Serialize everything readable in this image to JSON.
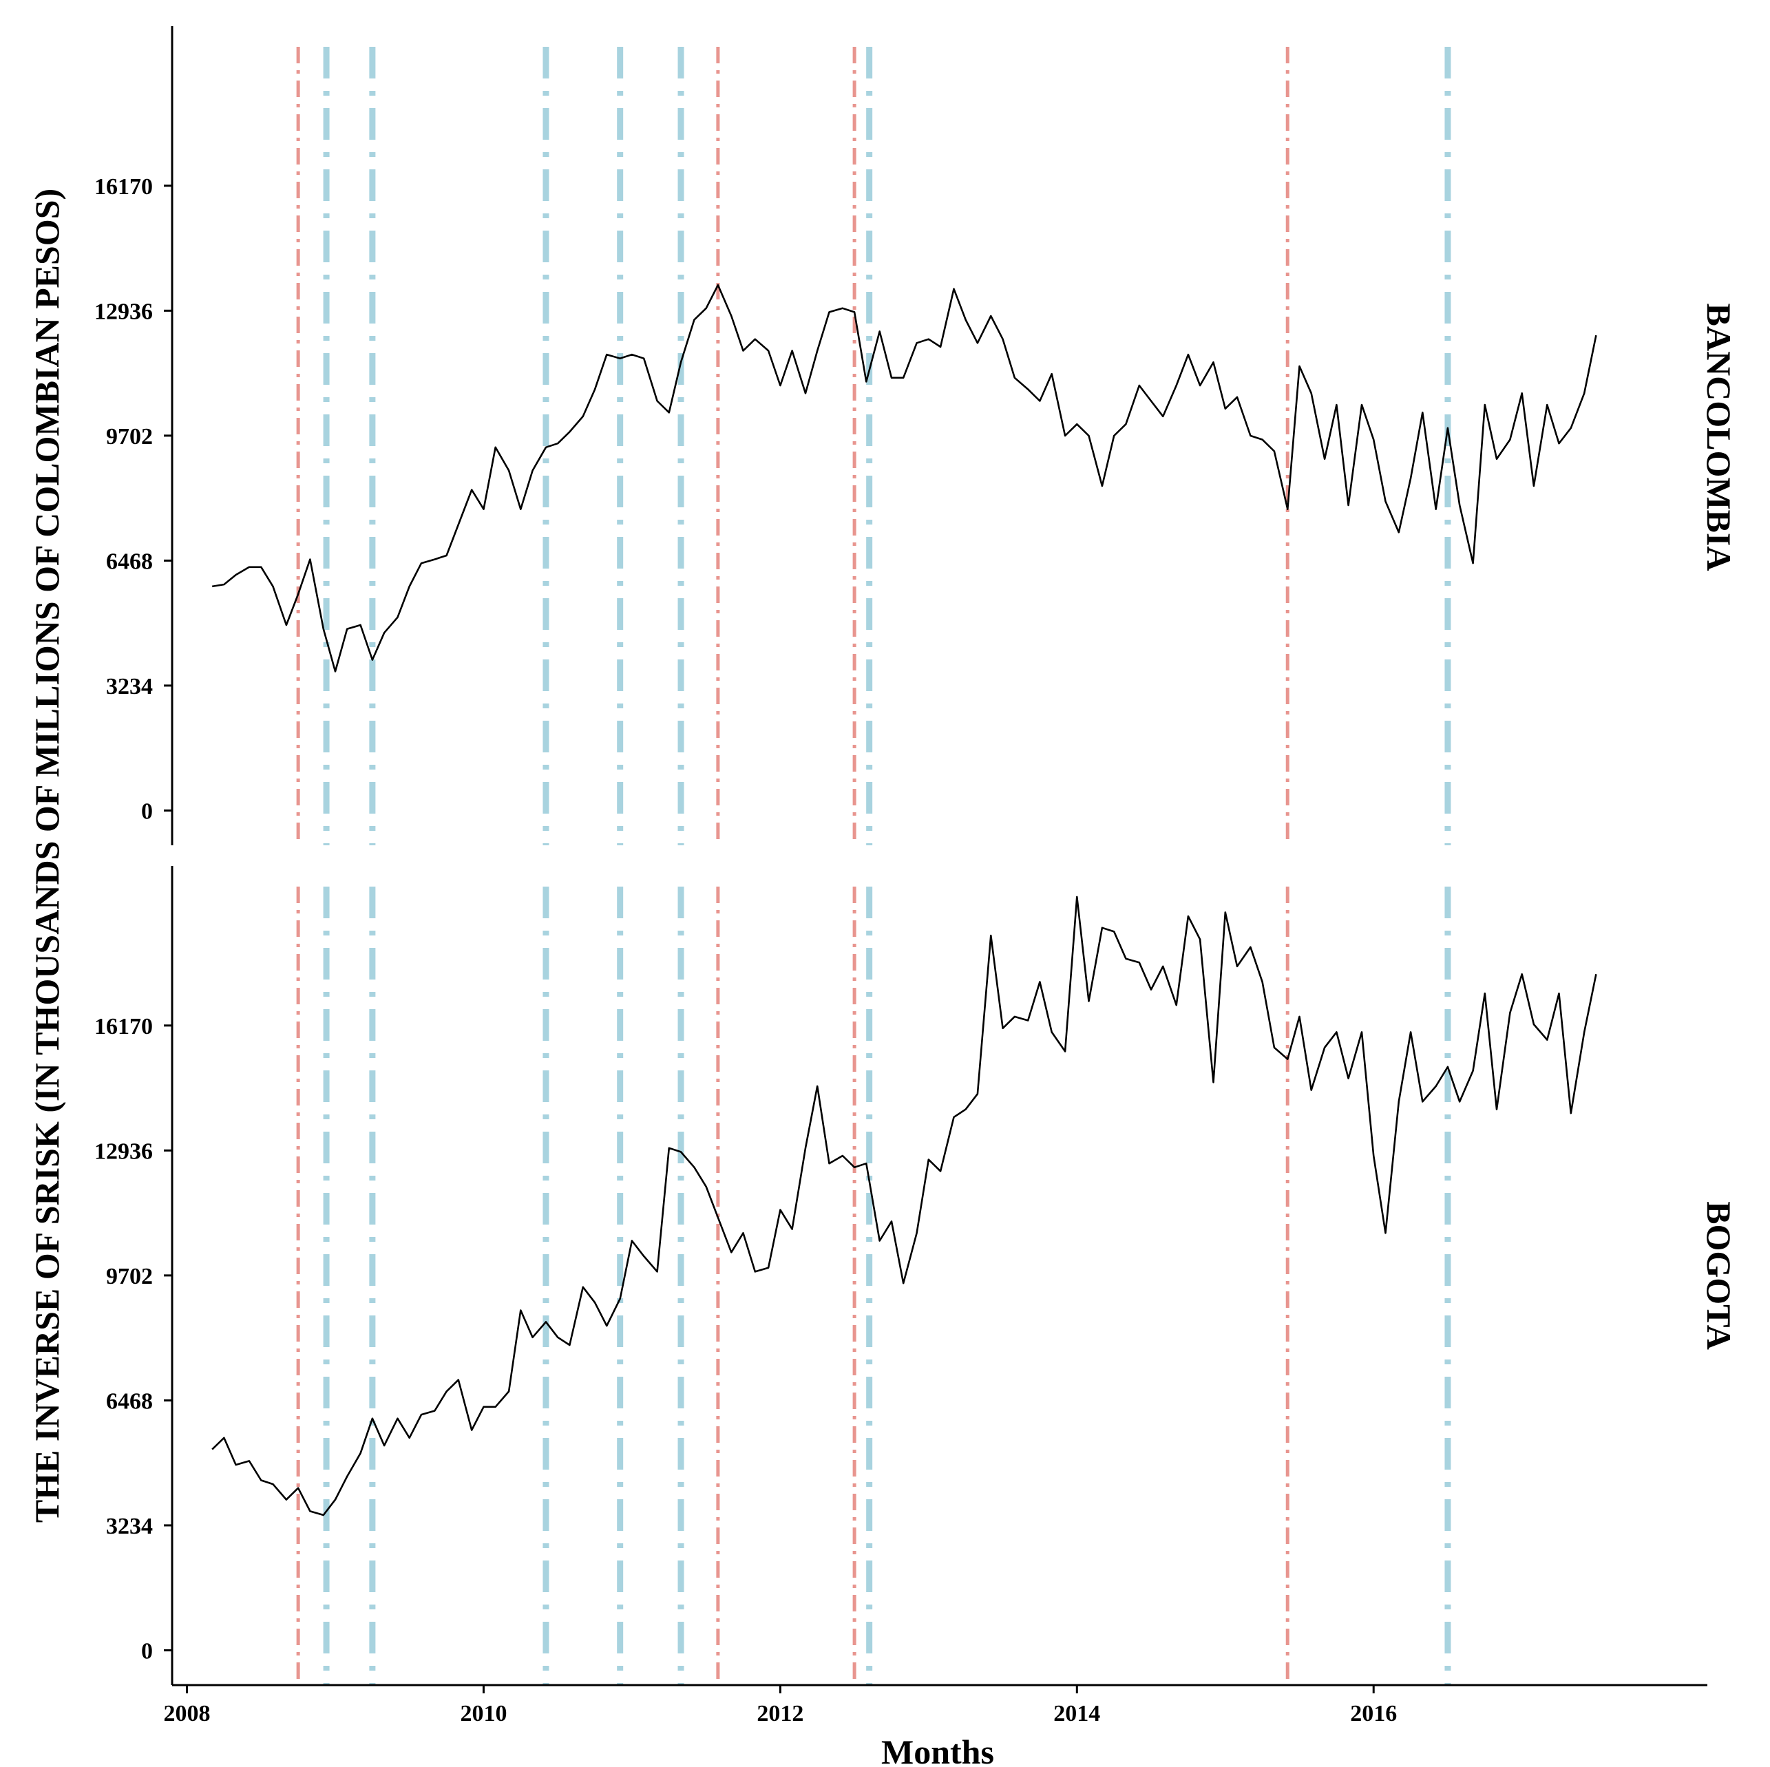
{
  "chart_data": {
    "type": "line",
    "ylabel": "THE INVERSE OF SRISK (IN THOUSANDS OF MILLIONS OF COLOMBIAN PESOS)",
    "xlabel": "Months",
    "x_ticks": [
      "2008",
      "2010",
      "2012",
      "2014",
      "2016"
    ],
    "y_ticks": [
      "0",
      "3234",
      "6468",
      "9702",
      "12936",
      "16170"
    ],
    "xlim": [
      2007.9,
      2018.25
    ],
    "ylim": [
      -900,
      20300
    ],
    "grid": false,
    "legend": "none",
    "colors": {
      "line": "#000000",
      "red_vline": "#e8958f",
      "blue_vline": "#a8d3df"
    },
    "red_vlines": [
      2008.75,
      2011.58,
      2012.5,
      2015.42
    ],
    "blue_vlines": [
      2008.94,
      2009.25,
      2010.42,
      2010.92,
      2011.33,
      2012.6,
      2016.5
    ],
    "series": [
      {
        "name": "BANCOLOMBIA",
        "x": [
          2008.17,
          2008.25,
          2008.33,
          2008.42,
          2008.5,
          2008.58,
          2008.67,
          2008.75,
          2008.83,
          2008.92,
          2009.0,
          2009.08,
          2009.17,
          2009.25,
          2009.33,
          2009.42,
          2009.5,
          2009.58,
          2009.67,
          2009.75,
          2009.83,
          2009.92,
          2010.0,
          2010.08,
          2010.17,
          2010.25,
          2010.33,
          2010.42,
          2010.5,
          2010.58,
          2010.67,
          2010.75,
          2010.83,
          2010.92,
          2011.0,
          2011.08,
          2011.17,
          2011.25,
          2011.33,
          2011.42,
          2011.5,
          2011.58,
          2011.67,
          2011.75,
          2011.83,
          2011.92,
          2012.0,
          2012.08,
          2012.17,
          2012.25,
          2012.33,
          2012.42,
          2012.5,
          2012.58,
          2012.67,
          2012.75,
          2012.83,
          2012.92,
          2013.0,
          2013.08,
          2013.17,
          2013.25,
          2013.33,
          2013.42,
          2013.5,
          2013.58,
          2013.67,
          2013.75,
          2013.83,
          2013.92,
          2014.0,
          2014.08,
          2014.17,
          2014.25,
          2014.33,
          2014.42,
          2014.5,
          2014.58,
          2014.67,
          2014.75,
          2014.83,
          2014.92,
          2015.0,
          2015.08,
          2015.17,
          2015.25,
          2015.33,
          2015.42,
          2015.5,
          2015.58,
          2015.67,
          2015.75,
          2015.83,
          2015.92,
          2016.0,
          2016.08,
          2016.17,
          2016.25,
          2016.33,
          2016.42,
          2016.5,
          2016.58,
          2016.67,
          2016.75,
          2016.83,
          2016.92,
          2017.0,
          2017.08,
          2017.17,
          2017.25,
          2017.33,
          2017.42,
          2017.5
        ],
        "y": [
          5800,
          5850,
          6100,
          6300,
          6300,
          5800,
          4800,
          5600,
          6500,
          4700,
          3600,
          4700,
          4800,
          3900,
          4600,
          5000,
          5800,
          6400,
          6500,
          6600,
          7400,
          8300,
          7800,
          9400,
          8800,
          7800,
          8800,
          9400,
          9500,
          9800,
          10200,
          10900,
          11800,
          11700,
          11800,
          11700,
          10600,
          10300,
          11600,
          12700,
          13000,
          13600,
          12800,
          11900,
          12200,
          11900,
          11000,
          11900,
          10800,
          11900,
          12900,
          13000,
          12900,
          11100,
          12400,
          11200,
          11200,
          12100,
          12200,
          12000,
          13500,
          12700,
          12100,
          12800,
          12200,
          11200,
          10900,
          10600,
          11300,
          9700,
          10000,
          9700,
          8400,
          9700,
          10000,
          11000,
          10600,
          10200,
          11000,
          11800,
          11000,
          11600,
          10400,
          10700,
          9700,
          9600,
          9300,
          7800,
          11500,
          10800,
          9100,
          10500,
          7900,
          10500,
          9600,
          8000,
          7200,
          8600,
          10300,
          7800,
          9900,
          7900,
          6400,
          10500,
          9100,
          9600,
          10800,
          8400,
          10500,
          9500,
          9900,
          10800,
          12300
        ]
      },
      {
        "name": "BOGOTA",
        "x": [
          2008.17,
          2008.25,
          2008.33,
          2008.42,
          2008.5,
          2008.58,
          2008.67,
          2008.75,
          2008.83,
          2008.92,
          2009.0,
          2009.08,
          2009.17,
          2009.25,
          2009.33,
          2009.42,
          2009.5,
          2009.58,
          2009.67,
          2009.75,
          2009.83,
          2009.92,
          2010.0,
          2010.08,
          2010.17,
          2010.25,
          2010.33,
          2010.42,
          2010.5,
          2010.58,
          2010.67,
          2010.75,
          2010.83,
          2010.92,
          2011.0,
          2011.08,
          2011.17,
          2011.25,
          2011.33,
          2011.42,
          2011.5,
          2011.58,
          2011.67,
          2011.75,
          2011.83,
          2011.92,
          2012.0,
          2012.08,
          2012.17,
          2012.25,
          2012.33,
          2012.42,
          2012.5,
          2012.58,
          2012.67,
          2012.75,
          2012.83,
          2012.92,
          2013.0,
          2013.08,
          2013.17,
          2013.25,
          2013.33,
          2013.42,
          2013.5,
          2013.58,
          2013.67,
          2013.75,
          2013.83,
          2013.92,
          2014.0,
          2014.08,
          2014.17,
          2014.25,
          2014.33,
          2014.42,
          2014.5,
          2014.58,
          2014.67,
          2014.75,
          2014.83,
          2014.92,
          2015.0,
          2015.08,
          2015.17,
          2015.25,
          2015.33,
          2015.42,
          2015.5,
          2015.58,
          2015.67,
          2015.75,
          2015.83,
          2015.92,
          2016.0,
          2016.08,
          2016.17,
          2016.25,
          2016.33,
          2016.42,
          2016.5,
          2016.58,
          2016.67,
          2016.75,
          2016.83,
          2016.92,
          2017.0,
          2017.08,
          2017.17,
          2017.25,
          2017.33,
          2017.42,
          2017.5
        ],
        "y": [
          5200,
          5500,
          4800,
          4900,
          4400,
          4300,
          3900,
          4200,
          3600,
          3500,
          3900,
          4500,
          5100,
          6000,
          5300,
          6000,
          5500,
          6100,
          6200,
          6700,
          7000,
          5700,
          6300,
          6300,
          6700,
          8800,
          8100,
          8500,
          8100,
          7900,
          9400,
          9000,
          8400,
          9100,
          10600,
          10200,
          9800,
          13000,
          12900,
          12500,
          12000,
          11200,
          10300,
          10800,
          9800,
          9900,
          11400,
          10900,
          13000,
          14600,
          12600,
          12800,
          12500,
          12600,
          10600,
          11100,
          9500,
          10800,
          12700,
          12400,
          13800,
          14000,
          14400,
          18500,
          16100,
          16400,
          16300,
          17300,
          16000,
          15500,
          19500,
          16800,
          18700,
          18600,
          17900,
          17800,
          17100,
          17700,
          16700,
          19000,
          18400,
          14700,
          19100,
          17700,
          18200,
          17300,
          15600,
          15300,
          16400,
          14500,
          15600,
          16000,
          14800,
          16000,
          12800,
          10800,
          14200,
          16000,
          14200,
          14600,
          15100,
          14200,
          15000,
          17000,
          14000,
          16500,
          17500,
          16200,
          15800,
          17000,
          13900,
          16000,
          17500
        ]
      }
    ]
  }
}
